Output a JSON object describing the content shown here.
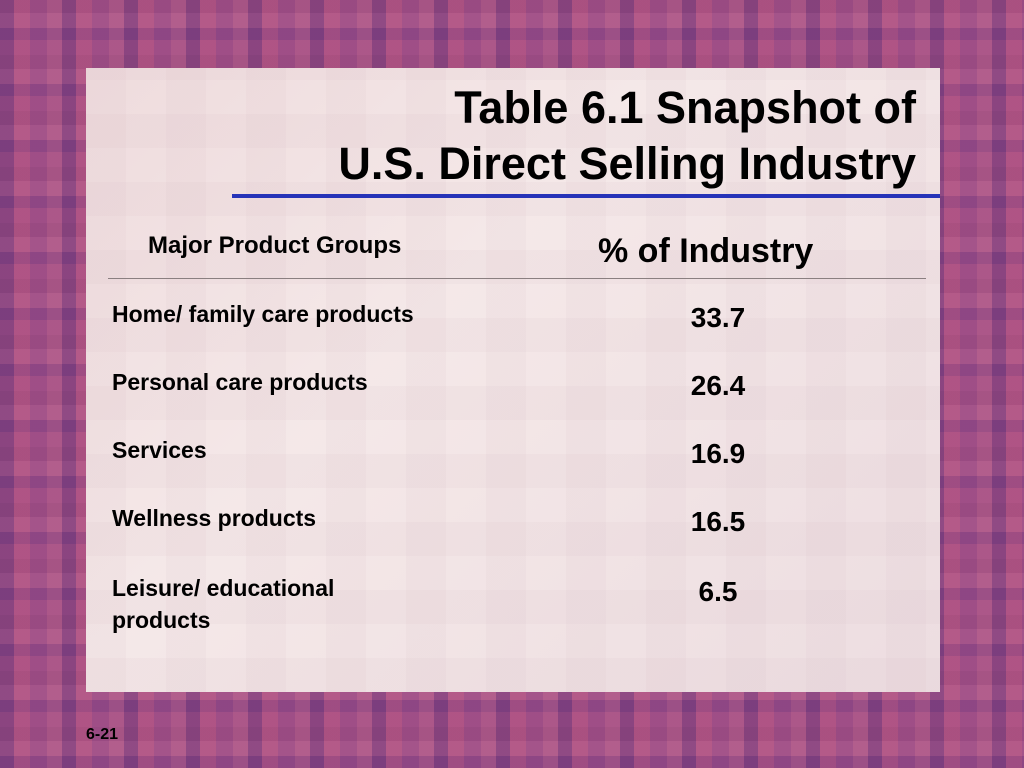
{
  "slide": {
    "title_line1": "Table 6.1 Snapshot of",
    "title_line2": "U.S. Direct Selling Industry",
    "footer": "6-21"
  },
  "table": {
    "columns": [
      "Major Product Groups",
      "% of Industry"
    ],
    "rows": [
      {
        "group": "Home/ family care products",
        "percent": "33.7"
      },
      {
        "group": "Personal care products",
        "percent": "26.4"
      },
      {
        "group": "Services",
        "percent": "16.9"
      },
      {
        "group": "Wellness products",
        "percent": "16.5"
      },
      {
        "group": "Leisure/ educational products",
        "percent": "6.5"
      }
    ]
  },
  "colors": {
    "accent_line": "#2633b8",
    "background": "#a0527f"
  }
}
